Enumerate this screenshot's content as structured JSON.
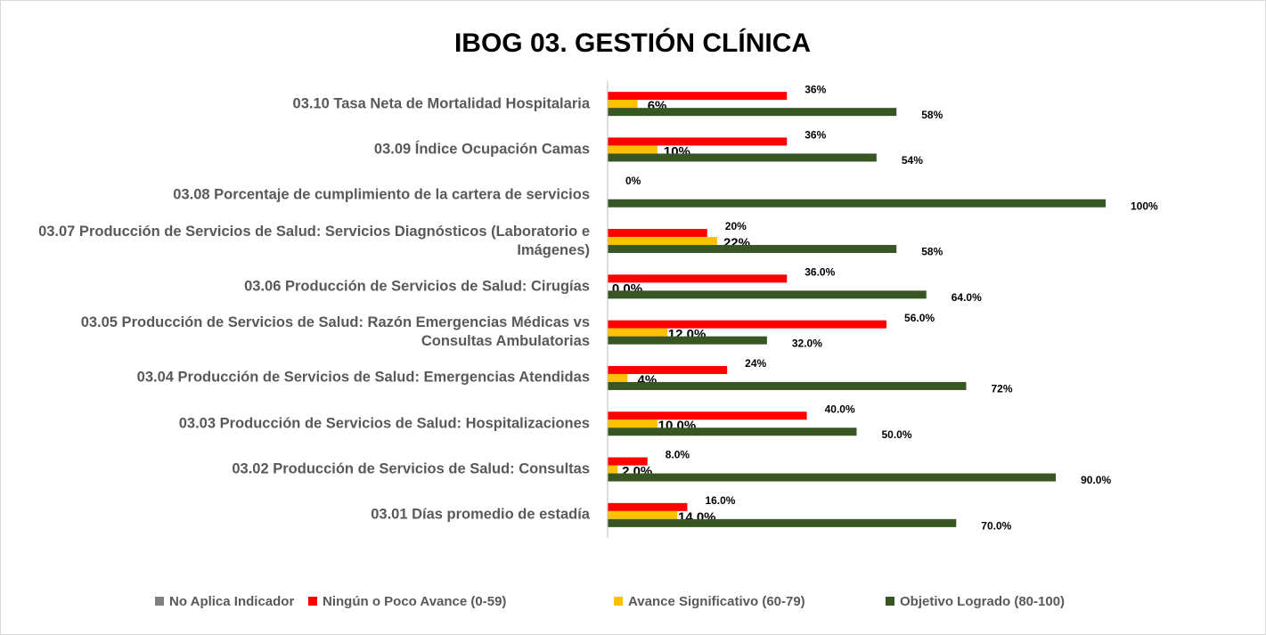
{
  "chart_data": {
    "type": "hbar",
    "title": "IBOG 03. GESTIÓN CLÍNICA",
    "categories": [
      "03.10 Tasa Neta de Mortalidad Hospitalaria",
      "03.09 Índice Ocupación Camas",
      "03.08 Porcentaje de cumplimiento de la cartera de servicios",
      "03.07 Producción de Servicios de Salud: Servicios Diagnósticos (Laboratorio e Imágenes)",
      "03.06 Producción de Servicios de Salud: Cirugías",
      "03.05 Producción de Servicios de Salud: Razón Emergencias Médicas vs Consultas Ambulatorias",
      "03.04 Producción de Servicios de Salud: Emergencias Atendidas",
      "03.03 Producción de Servicios de Salud: Hospitalizaciones",
      "03.02 Producción de Servicios de Salud: Consultas",
      "03.01 Días promedio de estadía"
    ],
    "series": [
      {
        "name": "No Aplica Indicador",
        "color": "#808080",
        "values": [
          null,
          null,
          null,
          null,
          null,
          null,
          null,
          null,
          null,
          null
        ]
      },
      {
        "name": "Ningún o Poco Avance (0-59)",
        "color": "#ff0000",
        "values": [
          36,
          36,
          0,
          20,
          36,
          56,
          24,
          40,
          8,
          16
        ],
        "value_labels": [
          "36%",
          "36%",
          "0%",
          "20%",
          "36.0%",
          "56.0%",
          "24%",
          "40.0%",
          "8.0%",
          "16.0%"
        ]
      },
      {
        "name": "Avance Significativo (60-79)",
        "color": "#ffc000",
        "values": [
          6,
          10,
          null,
          22,
          0,
          12,
          4,
          10,
          2,
          14
        ],
        "value_labels": [
          "6%",
          "10%",
          null,
          "22%",
          "0.0%",
          "12.0%",
          "4%",
          "10.0%",
          "2.0%",
          "14.0%"
        ]
      },
      {
        "name": "Objetivo Logrado (80-100)",
        "color": "#375623",
        "values": [
          58,
          54,
          100,
          58,
          64,
          32,
          72,
          50,
          90,
          70
        ],
        "value_labels": [
          "58%",
          "54%",
          "100%",
          "58%",
          "64.0%",
          "32.0%",
          "72%",
          "50.0%",
          "90.0%",
          "70.0%"
        ]
      }
    ],
    "xlim": [
      0,
      100
    ],
    "legend": "bottom"
  }
}
